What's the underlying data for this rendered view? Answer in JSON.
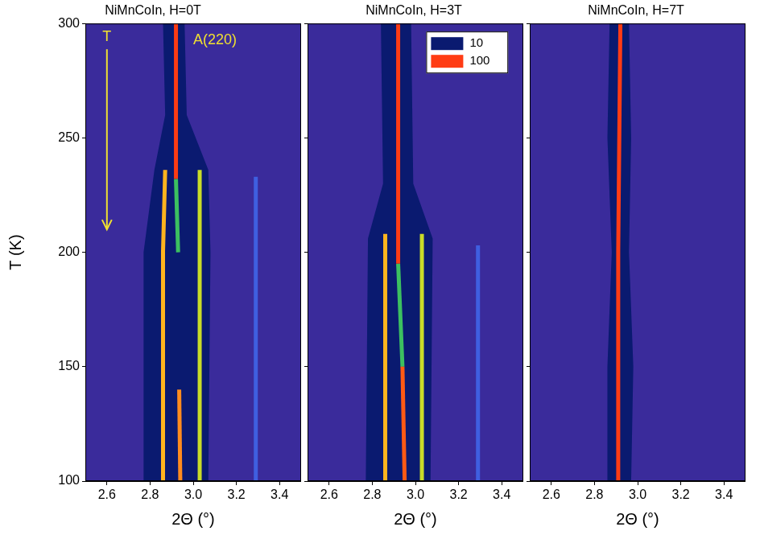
{
  "chart_data": [
    {
      "type": "line",
      "title": "NiMnCoIn, H=0T",
      "xlabel": "2Θ (°)",
      "ylabel": "T (K)",
      "xlim": [
        2.5,
        3.5
      ],
      "xticks": [
        2.6,
        2.8,
        {
          "value": 3,
          "label": "3.0"
        },
        3.2,
        3.4
      ],
      "ylim": [
        100,
        300
      ],
      "yticks": [
        100,
        150,
        200,
        250,
        300
      ],
      "grid": false,
      "annotations": [
        "T",
        "A(220)"
      ],
      "series": [
        {
          "type": "area",
          "color": "#0a1a70",
          "x": [
            2.86,
            2.87,
            2.82,
            2.77,
            2.77,
            3.07,
            3.08,
            3.07,
            2.97,
            2.96,
            2.86
          ],
          "values": [
            300,
            260,
            236,
            200,
            100,
            100,
            200,
            236,
            260,
            300,
            300
          ]
        },
        {
          "color": "#3f5fe0",
          "x": [
            3.29,
            3.29
          ],
          "values": [
            233,
            100
          ]
        },
        {
          "color": "#ff3c14",
          "x": [
            2.92,
            2.92
          ],
          "values": [
            300,
            232
          ]
        },
        {
          "color": "#3cc060",
          "x": [
            2.92,
            2.93
          ],
          "values": [
            232,
            200
          ]
        },
        {
          "color": "#ff8c1e",
          "x": [
            2.935,
            2.94
          ],
          "values": [
            140,
            100
          ]
        },
        {
          "color": "#ffb41e",
          "x": [
            2.87,
            2.86,
            2.86
          ],
          "values": [
            236,
            200,
            100
          ]
        },
        {
          "color": "#c8dc28",
          "x": [
            3.03,
            3.03
          ],
          "values": [
            236,
            100
          ]
        }
      ]
    },
    {
      "type": "line",
      "title": "NiMnCoIn, H=3T",
      "xlabel": "2Θ (°)",
      "xlim": [
        2.5,
        3.5
      ],
      "xticks": [
        2.6,
        2.8,
        {
          "value": 3,
          "label": "3.0"
        },
        3.2,
        3.4
      ],
      "ylim": [
        100,
        300
      ],
      "yticks": [
        100,
        150,
        200,
        250,
        300
      ],
      "grid": false,
      "tick_labels": "x",
      "colorbar": {
        "levels": [
          10,
          100
        ],
        "colors": [
          "#0a1a70",
          "#ff3c14"
        ]
      },
      "series": [
        {
          "type": "area",
          "color": "#0a1a70",
          "x": [
            2.84,
            2.85,
            2.78,
            2.77,
            3.07,
            3.08,
            2.99,
            2.98,
            2.84
          ],
          "values": [
            300,
            230,
            206,
            100,
            100,
            206,
            230,
            300,
            300
          ]
        },
        {
          "color": "#3f5fe0",
          "x": [
            3.29,
            3.29
          ],
          "values": [
            203,
            100
          ]
        },
        {
          "color": "#ff3c14",
          "x": [
            2.92,
            2.92
          ],
          "values": [
            300,
            195
          ]
        },
        {
          "color": "#3cc060",
          "x": [
            2.92,
            2.94
          ],
          "values": [
            195,
            150
          ]
        },
        {
          "color": "#ff5a14",
          "x": [
            2.94,
            2.95
          ],
          "values": [
            150,
            100
          ]
        },
        {
          "color": "#ffb41e",
          "x": [
            2.86,
            2.86
          ],
          "values": [
            208,
            100
          ]
        },
        {
          "color": "#c8dc28",
          "x": [
            3.03,
            3.03
          ],
          "values": [
            208,
            100
          ]
        }
      ]
    },
    {
      "type": "line",
      "title": "NiMnCoIn, H=7T",
      "xlabel": "2Θ (°)",
      "xlim": [
        2.5,
        3.5
      ],
      "xticks": [
        2.6,
        2.8,
        {
          "value": 3,
          "label": "3.0"
        },
        3.2,
        3.4
      ],
      "ylim": [
        100,
        300
      ],
      "yticks": [
        100,
        150,
        200,
        250,
        300
      ],
      "grid": false,
      "tick_labels": "x",
      "series": [
        {
          "type": "area",
          "color": "#0a1a70",
          "x": [
            2.87,
            2.86,
            2.88,
            2.86,
            2.86,
            2.97,
            2.98,
            2.96,
            2.97,
            2.96,
            2.87
          ],
          "values": [
            300,
            250,
            200,
            150,
            100,
            100,
            150,
            200,
            250,
            300,
            300
          ]
        },
        {
          "color": "#ff3c14",
          "x": [
            2.92,
            2.91,
            2.91
          ],
          "values": [
            300,
            200,
            100
          ]
        }
      ]
    }
  ]
}
